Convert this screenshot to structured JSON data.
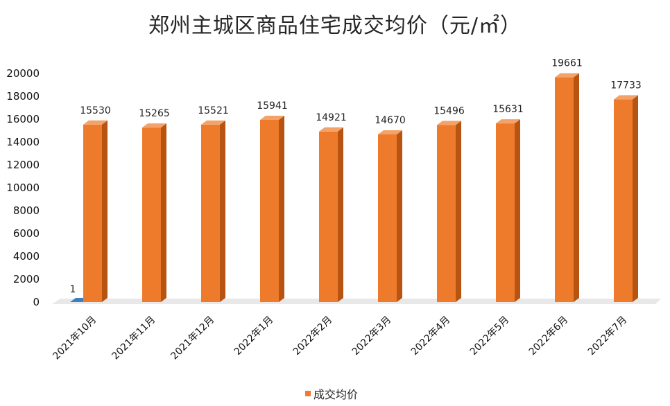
{
  "title": "郑州主城区商品住宅成交均价（元/㎡）",
  "colors": {
    "bar_front": "#ee7b2c",
    "bar_side": "#b85412",
    "bar_top": "#f3a36a",
    "secondary_bar": "#3f7fbf",
    "floor": "#d9d9d9"
  },
  "chart_data": {
    "type": "bar",
    "title": "郑州主城区商品住宅成交均价（元/㎡）",
    "categories": [
      "2021年10月",
      "2021年11月",
      "2021年12月",
      "2022年1月",
      "2022年2月",
      "2022年3月",
      "2022年4月",
      "2022年5月",
      "2022年6月",
      "2022年7月"
    ],
    "series": [
      {
        "name": "成交均价",
        "values": [
          null,
          15265,
          15521,
          15941,
          14921,
          14670,
          15496,
          15631,
          19661,
          17733
        ]
      }
    ],
    "first_category": {
      "bar_value": 15530,
      "small_bar_value": 1
    },
    "y_ticks": [
      "0",
      "2000",
      "4000",
      "6000",
      "8000",
      "10000",
      "12000",
      "14000",
      "16000",
      "18000",
      "20000"
    ],
    "ylim": [
      0,
      20000
    ],
    "grid": false,
    "legend": "bottom"
  },
  "legend": {
    "label": "成交均价"
  }
}
